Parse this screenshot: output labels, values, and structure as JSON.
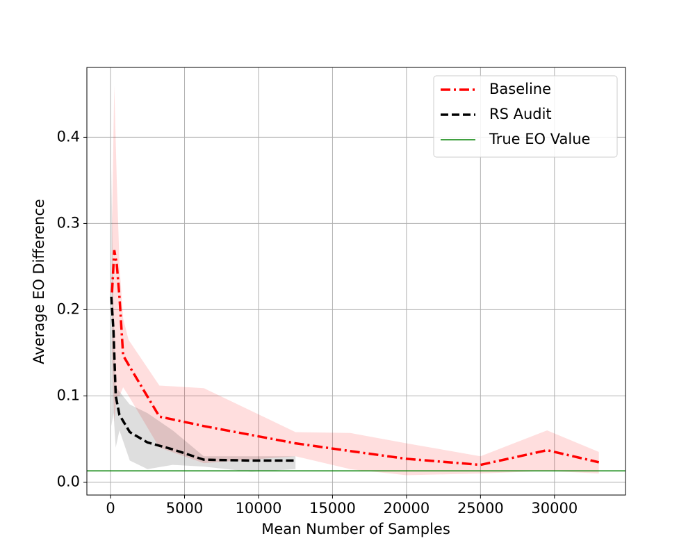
{
  "chart_data": {
    "type": "line",
    "xlabel": "Mean Number of Samples",
    "ylabel": "Average EO Difference",
    "xlim": [
      -1600,
      34800
    ],
    "ylim": [
      -0.015,
      0.481
    ],
    "xticks": [
      0,
      5000,
      10000,
      15000,
      20000,
      25000,
      30000
    ],
    "yticks": [
      {
        "value": 0,
        "label": "0.0"
      },
      0.1,
      0.2,
      0.3,
      0.4
    ],
    "grid": true,
    "legend": "upper right",
    "series": [
      {
        "name": "Baseline",
        "color": "#ff0000",
        "style": "dashdot",
        "x": [
          100,
          250,
          420,
          610,
          850,
          1220,
          3300,
          6300,
          12500,
          16200,
          20000,
          25000,
          29500,
          33000
        ],
        "values": [
          0.22,
          0.269,
          0.253,
          0.213,
          0.147,
          0.136,
          0.076,
          0.065,
          0.045,
          0.036,
          0.027,
          0.02,
          0.037,
          0.023
        ],
        "upper": [
          0.3,
          0.46,
          0.35,
          0.25,
          0.19,
          0.165,
          0.112,
          0.109,
          0.058,
          0.057,
          0.045,
          0.03,
          0.06,
          0.035
        ],
        "lower": [
          0.15,
          0.07,
          0.1,
          0.1,
          0.11,
          0.1,
          0.04,
          0.022,
          0.03,
          0.015,
          0.008,
          0.01,
          0.013,
          0.01
        ]
      },
      {
        "name": "RS Audit",
        "color": "#000000",
        "style": "dashed",
        "x": [
          50,
          200,
          350,
          600,
          1300,
          2500,
          4200,
          6300,
          9500,
          12500
        ],
        "values": [
          0.215,
          0.175,
          0.1,
          0.078,
          0.058,
          0.046,
          0.038,
          0.026,
          0.025,
          0.025
        ],
        "upper": [
          0.365,
          0.2,
          0.11,
          0.105,
          0.09,
          0.08,
          0.06,
          0.03,
          0.03,
          0.03
        ],
        "lower": [
          0.065,
          0.08,
          0.04,
          0.06,
          0.025,
          0.015,
          0.02,
          0.018,
          0.012,
          0.015
        ]
      },
      {
        "name": "True EO Value",
        "color": "#008000",
        "style": "hline",
        "y": 0.013
      }
    ]
  }
}
